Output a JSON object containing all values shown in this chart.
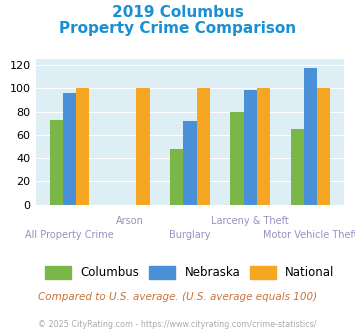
{
  "title_line1": "2019 Columbus",
  "title_line2": "Property Crime Comparison",
  "categories": [
    "All Property Crime",
    "Arson",
    "Burglary",
    "Larceny & Theft",
    "Motor Vehicle Theft"
  ],
  "columbus": [
    73,
    0,
    48,
    80,
    65
  ],
  "nebraska": [
    96,
    0,
    72,
    99,
    118
  ],
  "national": [
    100,
    100,
    100,
    100,
    100
  ],
  "columbus_color": "#7ab648",
  "nebraska_color": "#4a90d9",
  "national_color": "#f5a623",
  "ylim": [
    0,
    125
  ],
  "yticks": [
    0,
    20,
    40,
    60,
    80,
    100,
    120
  ],
  "bg_color": "#ddeef5",
  "title_color": "#1a8fd1",
  "xlabel_color": "#9b8fc0",
  "legend_labels": [
    "Columbus",
    "Nebraska",
    "National"
  ],
  "footer_text": "Compared to U.S. average. (U.S. average equals 100)",
  "copyright_text": "© 2025 CityRating.com - https://www.cityrating.com/crime-statistics/",
  "footer_color": "#c8733a",
  "copyright_color": "#aaaaaa",
  "bar_width": 0.22
}
